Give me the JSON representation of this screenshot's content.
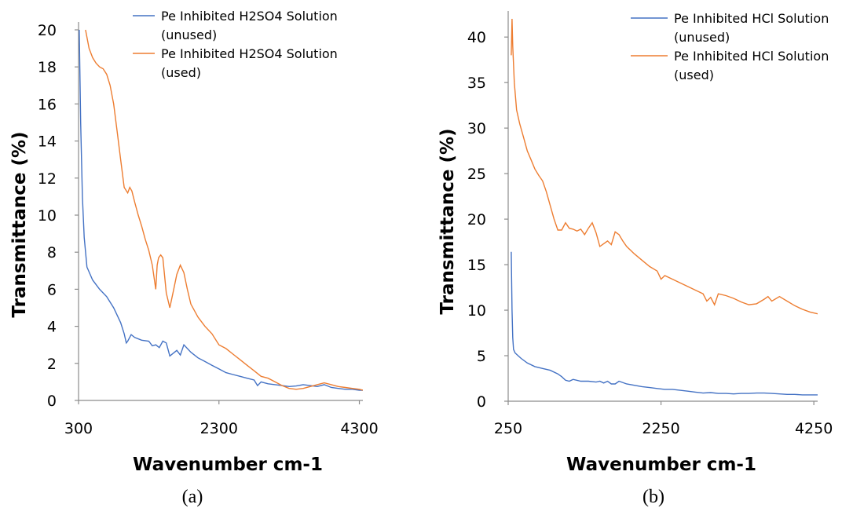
{
  "chart_data": [
    {
      "type": "line",
      "title": "",
      "caption": "(a)",
      "xlabel": "Wavenumber cm-1",
      "ylabel": "Transmittance (%)",
      "xlim": [
        300,
        4350
      ],
      "ylim": [
        0,
        20
      ],
      "xticks": [
        300,
        2300,
        4300
      ],
      "yticks": [
        0,
        2,
        4,
        6,
        8,
        10,
        12,
        14,
        16,
        18,
        20
      ],
      "grid": false,
      "legend": "top-right",
      "series": [
        {
          "name": "Pe Inhibited H2SO4 Solution (unused)",
          "name_lines": [
            "Pe Inhibited H2SO4 Solution",
            "(unused)"
          ],
          "color": "#4472c4",
          "x": [
            310,
            330,
            355,
            380,
            420,
            500,
            600,
            700,
            800,
            900,
            950,
            980,
            1000,
            1050,
            1100,
            1200,
            1300,
            1350,
            1400,
            1450,
            1500,
            1550,
            1600,
            1650,
            1700,
            1750,
            1800,
            1900,
            2000,
            2100,
            2200,
            2300,
            2400,
            2500,
            2600,
            2700,
            2800,
            2850,
            2900,
            3000,
            3100,
            3200,
            3300,
            3400,
            3500,
            3600,
            3700,
            3800,
            3900,
            4000,
            4100,
            4200,
            4300,
            4350
          ],
          "y": [
            20,
            15,
            11,
            8.8,
            7.2,
            6.5,
            6.0,
            5.6,
            5.0,
            4.2,
            3.6,
            3.1,
            3.2,
            3.55,
            3.4,
            3.25,
            3.2,
            2.95,
            3.0,
            2.85,
            3.2,
            3.1,
            2.4,
            2.55,
            2.7,
            2.45,
            3.0,
            2.6,
            2.3,
            2.1,
            1.9,
            1.7,
            1.5,
            1.4,
            1.3,
            1.2,
            1.1,
            0.8,
            1.0,
            0.9,
            0.85,
            0.8,
            0.75,
            0.78,
            0.85,
            0.8,
            0.75,
            0.85,
            0.7,
            0.65,
            0.6,
            0.6,
            0.55,
            0.55
          ]
        },
        {
          "name": "Pe Inhibited H2SO4 Solution (used)",
          "name_lines": [
            "Pe Inhibited H2SO4 Solution",
            "(used)"
          ],
          "color": "#ed7d31",
          "x": [
            400,
            450,
            500,
            550,
            600,
            650,
            700,
            750,
            800,
            850,
            900,
            950,
            1000,
            1030,
            1060,
            1100,
            1150,
            1200,
            1250,
            1300,
            1350,
            1400,
            1420,
            1440,
            1470,
            1500,
            1550,
            1600,
            1650,
            1700,
            1750,
            1800,
            1850,
            1900,
            2000,
            2100,
            2200,
            2300,
            2400,
            2500,
            2600,
            2700,
            2800,
            2900,
            3000,
            3100,
            3200,
            3300,
            3400,
            3500,
            3600,
            3700,
            3800,
            3900,
            4000,
            4100,
            4200,
            4300,
            4350
          ],
          "y": [
            20,
            19,
            18.5,
            18.2,
            18.0,
            17.9,
            17.6,
            17.0,
            16.0,
            14.5,
            13.0,
            11.5,
            11.2,
            11.5,
            11.3,
            10.7,
            10.0,
            9.4,
            8.7,
            8.1,
            7.3,
            6.0,
            7.3,
            7.7,
            7.85,
            7.7,
            5.8,
            5.0,
            5.9,
            6.8,
            7.3,
            6.9,
            6.0,
            5.2,
            4.5,
            4.0,
            3.6,
            3.0,
            2.8,
            2.5,
            2.2,
            1.9,
            1.6,
            1.3,
            1.2,
            1.0,
            0.8,
            0.65,
            0.6,
            0.65,
            0.75,
            0.85,
            0.95,
            0.85,
            0.75,
            0.7,
            0.65,
            0.6,
            0.55
          ]
        }
      ]
    },
    {
      "type": "line",
      "title": "",
      "caption": "(b)",
      "xlabel": "Wavenumber cm-1",
      "ylabel": "Transmittance (%)",
      "xlim": [
        250,
        4300
      ],
      "ylim": [
        0,
        42
      ],
      "xticks": [
        250,
        2250,
        4250
      ],
      "yticks": [
        0,
        5,
        10,
        15,
        20,
        25,
        30,
        35,
        40
      ],
      "grid": false,
      "legend": "top-right",
      "series": [
        {
          "name": "Pe Inhibited HCl Solution (unused)",
          "name_lines": [
            "Pe Inhibited HCl Solution",
            "(unused)"
          ],
          "color": "#4472c4",
          "x": [
            290,
            300,
            310,
            320,
            340,
            380,
            420,
            500,
            600,
            700,
            800,
            900,
            950,
            1000,
            1050,
            1100,
            1200,
            1300,
            1400,
            1450,
            1500,
            1550,
            1600,
            1650,
            1700,
            1800,
            1900,
            2000,
            2100,
            2200,
            2300,
            2400,
            2500,
            2600,
            2700,
            2800,
            2900,
            3000,
            3100,
            3200,
            3300,
            3400,
            3500,
            3600,
            3700,
            3800,
            3900,
            4000,
            4100,
            4200,
            4300
          ],
          "y": [
            16.4,
            10,
            7.0,
            5.7,
            5.3,
            5.0,
            4.7,
            4.2,
            3.8,
            3.6,
            3.4,
            3.0,
            2.7,
            2.3,
            2.2,
            2.4,
            2.2,
            2.2,
            2.1,
            2.2,
            2.0,
            2.2,
            1.9,
            1.9,
            2.2,
            1.9,
            1.75,
            1.6,
            1.5,
            1.4,
            1.3,
            1.3,
            1.2,
            1.1,
            1.0,
            0.9,
            0.95,
            0.85,
            0.85,
            0.8,
            0.85,
            0.85,
            0.9,
            0.9,
            0.85,
            0.8,
            0.75,
            0.75,
            0.7,
            0.7,
            0.7
          ]
        },
        {
          "name": "Pe Inhibited HCl Solution (used)",
          "name_lines": [
            "Pe Inhibited HCl Solution",
            "(used)"
          ],
          "color": "#ed7d31",
          "x": [
            290,
            300,
            310,
            330,
            360,
            400,
            450,
            500,
            550,
            600,
            650,
            700,
            750,
            800,
            850,
            900,
            950,
            1000,
            1050,
            1100,
            1150,
            1200,
            1250,
            1300,
            1350,
            1400,
            1450,
            1500,
            1550,
            1600,
            1650,
            1700,
            1750,
            1800,
            1900,
            2000,
            2100,
            2200,
            2250,
            2300,
            2400,
            2500,
            2600,
            2700,
            2800,
            2850,
            2900,
            2950,
            3000,
            3100,
            3200,
            3300,
            3400,
            3500,
            3600,
            3650,
            3700,
            3800,
            3900,
            4000,
            4100,
            4200,
            4300
          ],
          "y": [
            38,
            42,
            39,
            35,
            32,
            30.5,
            29.0,
            27.5,
            26.5,
            25.5,
            24.8,
            24.2,
            23.0,
            21.5,
            20.0,
            18.8,
            18.8,
            19.6,
            19.0,
            18.9,
            18.7,
            18.9,
            18.3,
            19.0,
            19.6,
            18.5,
            17.0,
            17.3,
            17.6,
            17.2,
            18.6,
            18.3,
            17.6,
            17.0,
            16.2,
            15.5,
            14.8,
            14.3,
            13.4,
            13.8,
            13.4,
            13.0,
            12.6,
            12.2,
            11.8,
            11.0,
            11.4,
            10.6,
            11.8,
            11.6,
            11.3,
            10.9,
            10.6,
            10.7,
            11.2,
            11.5,
            11.0,
            11.5,
            11.0,
            10.5,
            10.1,
            9.8,
            9.6
          ]
        }
      ]
    }
  ]
}
